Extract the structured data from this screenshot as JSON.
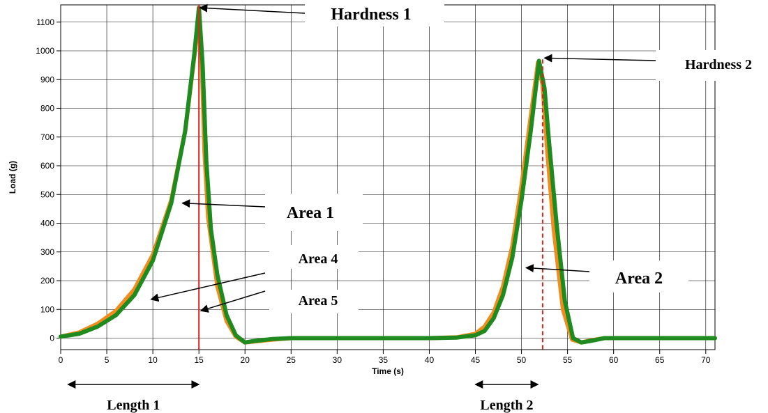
{
  "chart_data": {
    "type": "line",
    "title": "",
    "xlabel": "Time (s)",
    "ylabel": "Load (g)",
    "xlim": [
      0,
      71
    ],
    "ylim": [
      -40,
      1160
    ],
    "x_ticks": [
      0,
      5,
      10,
      15,
      20,
      25,
      30,
      35,
      40,
      45,
      50,
      55,
      60,
      65,
      70
    ],
    "y_ticks": [
      0,
      100,
      200,
      300,
      400,
      500,
      600,
      700,
      800,
      900,
      1000,
      1100
    ],
    "grid": true,
    "series": [
      {
        "color": "#f28c1e",
        "points": [
          [
            0,
            5
          ],
          [
            2,
            20
          ],
          [
            4,
            50
          ],
          [
            6,
            95
          ],
          [
            8,
            170
          ],
          [
            10,
            290
          ],
          [
            12,
            480
          ],
          [
            13.5,
            720
          ],
          [
            14.5,
            980
          ],
          [
            15,
            1110
          ],
          [
            15.3,
            980
          ],
          [
            15.6,
            650
          ],
          [
            16,
            420
          ],
          [
            17,
            180
          ],
          [
            18,
            60
          ],
          [
            19,
            5
          ],
          [
            20,
            -15
          ],
          [
            21,
            -12
          ],
          [
            23,
            -5
          ],
          [
            25,
            0
          ],
          [
            30,
            0
          ],
          [
            35,
            0
          ],
          [
            40,
            0
          ],
          [
            43,
            3
          ],
          [
            45,
            15
          ],
          [
            46,
            40
          ],
          [
            47,
            90
          ],
          [
            48,
            180
          ],
          [
            49,
            320
          ],
          [
            50,
            530
          ],
          [
            51,
            770
          ],
          [
            51.8,
            960
          ],
          [
            52.3,
            880
          ],
          [
            52.8,
            650
          ],
          [
            53.5,
            380
          ],
          [
            54.5,
            100
          ],
          [
            55.5,
            -5
          ],
          [
            56.5,
            -15
          ],
          [
            57.5,
            -8
          ],
          [
            59,
            0
          ],
          [
            65,
            0
          ],
          [
            71,
            0
          ]
        ]
      },
      {
        "color": "#1f8a1f",
        "points": [
          [
            0,
            5
          ],
          [
            2,
            15
          ],
          [
            4,
            40
          ],
          [
            6,
            80
          ],
          [
            8,
            150
          ],
          [
            10,
            270
          ],
          [
            12,
            470
          ],
          [
            13.5,
            720
          ],
          [
            14.5,
            990
          ],
          [
            15,
            1150
          ],
          [
            15.4,
            950
          ],
          [
            15.8,
            620
          ],
          [
            16.3,
            380
          ],
          [
            17,
            220
          ],
          [
            18,
            80
          ],
          [
            19,
            10
          ],
          [
            20,
            -15
          ],
          [
            21,
            -10
          ],
          [
            23,
            -3
          ],
          [
            25,
            0
          ],
          [
            30,
            0
          ],
          [
            35,
            0
          ],
          [
            40,
            0
          ],
          [
            43,
            2
          ],
          [
            45,
            10
          ],
          [
            46,
            25
          ],
          [
            47,
            70
          ],
          [
            48,
            150
          ],
          [
            49,
            280
          ],
          [
            50,
            480
          ],
          [
            51,
            720
          ],
          [
            51.9,
            965
          ],
          [
            52.5,
            870
          ],
          [
            53,
            680
          ],
          [
            53.8,
            400
          ],
          [
            54.7,
            130
          ],
          [
            55.6,
            0
          ],
          [
            56.5,
            -15
          ],
          [
            57.5,
            -10
          ],
          [
            59,
            0
          ],
          [
            65,
            0
          ],
          [
            71,
            0
          ]
        ]
      }
    ],
    "reference_lines": [
      {
        "x": 15,
        "style": "solid",
        "color": "#e2231a"
      },
      {
        "x": 52.3,
        "y_top": 970,
        "style": "dashed",
        "color": "#e2231a"
      }
    ],
    "annotations": [
      {
        "text": "Hardness 1",
        "target": [
          15.1,
          1150
        ],
        "arrow": true
      },
      {
        "text": "Hardness 2",
        "target": [
          52.5,
          975
        ],
        "arrow": true
      },
      {
        "text": "Area 1",
        "target": [
          13.2,
          470
        ],
        "arrow": true
      },
      {
        "text": "Area 2",
        "target": [
          50.5,
          245
        ],
        "arrow": true
      },
      {
        "text": "Area 4",
        "target": [
          9.8,
          135
        ],
        "arrow": true
      },
      {
        "text": "Area 5",
        "target": [
          15.2,
          95
        ],
        "arrow": true
      }
    ],
    "spans": [
      {
        "text": "Length 1",
        "x_start": 0.8,
        "x_end": 15
      },
      {
        "text": "Length 2",
        "x_start": 45,
        "x_end": 51.8
      }
    ]
  }
}
